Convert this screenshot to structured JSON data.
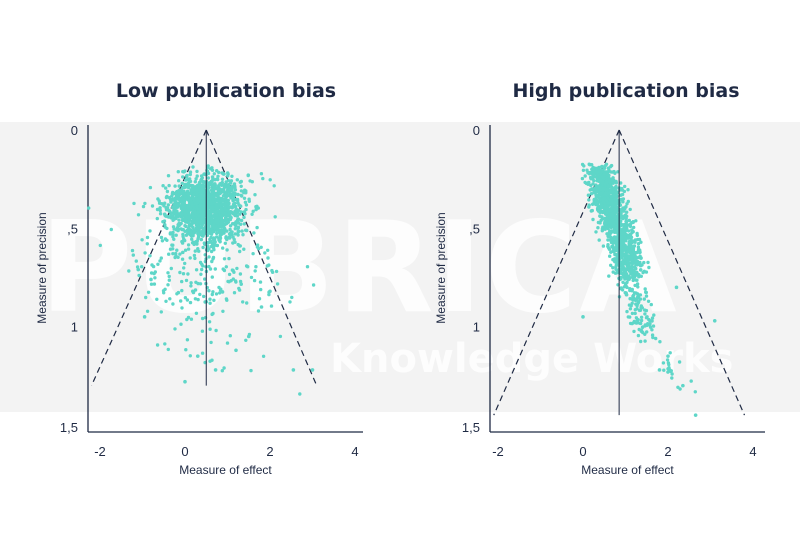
{
  "watermark": {
    "brand": "PUBRICA",
    "tagline": "Knowledge Works"
  },
  "colors": {
    "points": "#5ed6c8",
    "axis": "#1f2a44",
    "band": "#f3f3f3"
  },
  "chart_data": [
    {
      "type": "scatter",
      "title": "Low publication bias",
      "xlabel": "Measure of effect",
      "ylabel": "Measure of precision",
      "xlim": [
        -2.3,
        4.2
      ],
      "ylim": [
        1.5,
        0
      ],
      "y_reversed": true,
      "x_ticks": [
        "-2",
        "0",
        "2",
        "4"
      ],
      "y_ticks": [
        "0",
        ",5",
        "1",
        "1,5"
      ],
      "funnel_apex": [
        0.5,
        0
      ],
      "funnel_base_left": [
        -2.2,
        1.3
      ],
      "funnel_base_right": [
        3.1,
        1.3
      ],
      "center_line_x": 0.5,
      "center_line_y": [
        0,
        1.3
      ],
      "clusters": [
        {
          "cx": 0.48,
          "cy": 0.4,
          "sx": 0.45,
          "sy": 0.085,
          "n": 1400
        },
        {
          "cx": 0.55,
          "cy": 0.68,
          "sx": 0.95,
          "sy": 0.12,
          "n": 200
        },
        {
          "cx": 0.6,
          "cy": 0.95,
          "sx": 0.85,
          "sy": 0.2,
          "n": 60
        }
      ],
      "points": [
        [
          -1.1,
          0.71
        ],
        [
          2.55,
          1.22
        ],
        [
          3.0,
          1.22
        ],
        [
          -0.95,
          0.95
        ],
        [
          0.0,
          1.28
        ],
        [
          0.72,
          1.22
        ],
        [
          1.5,
          1.05
        ],
        [
          1.8,
          0.9
        ],
        [
          -0.8,
          0.76
        ],
        [
          2.0,
          0.82
        ],
        [
          0.3,
          1.15
        ],
        [
          1.2,
          1.12
        ]
      ]
    },
    {
      "type": "scatter",
      "title": "High publication bias",
      "xlabel": "Measure of effect",
      "ylabel": "Measure of precision",
      "xlim": [
        -2.3,
        4.2
      ],
      "ylim": [
        1.5,
        0
      ],
      "y_reversed": true,
      "x_ticks": [
        "-2",
        "0",
        "2",
        "4"
      ],
      "y_ticks": [
        "0",
        ",5",
        "1",
        "1,5"
      ],
      "funnel_apex": [
        0.85,
        0
      ],
      "funnel_base_left": [
        -2.1,
        1.45
      ],
      "funnel_base_right": [
        3.8,
        1.45
      ],
      "center_line_x": 0.85,
      "center_line_y": [
        0,
        1.45
      ],
      "clusters": [
        {
          "diag": true,
          "x0": 0.35,
          "y0": 0.19,
          "x1": 1.15,
          "y1": 0.72,
          "spread": 0.18,
          "n": 1100
        },
        {
          "diag": true,
          "x0": 0.9,
          "y0": 0.7,
          "x1": 1.5,
          "y1": 1.0,
          "spread": 0.15,
          "n": 140
        },
        {
          "diag": true,
          "x0": 1.3,
          "y0": 0.95,
          "x1": 2.4,
          "y1": 1.3,
          "spread": 0.18,
          "n": 35
        }
      ],
      "points": [
        [
          2.65,
          1.45
        ],
        [
          3.1,
          0.97
        ],
        [
          2.2,
          0.8
        ],
        [
          2.35,
          1.3
        ],
        [
          0.0,
          0.95
        ],
        [
          1.8,
          1.22
        ],
        [
          2.0,
          1.15
        ]
      ]
    }
  ]
}
